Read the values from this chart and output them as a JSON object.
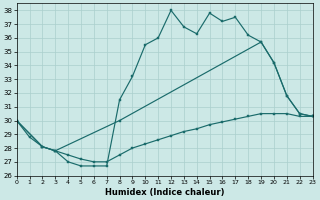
{
  "xlabel": "Humidex (Indice chaleur)",
  "bg_color": "#cce8e6",
  "grid_color": "#aacfcd",
  "line_color": "#1a6b6b",
  "xlim": [
    0,
    23
  ],
  "ylim": [
    26,
    38.5
  ],
  "xticks": [
    0,
    1,
    2,
    3,
    4,
    5,
    6,
    7,
    8,
    9,
    10,
    11,
    12,
    13,
    14,
    15,
    16,
    17,
    18,
    19,
    20,
    21,
    22,
    23
  ],
  "yticks": [
    26,
    27,
    28,
    29,
    30,
    31,
    32,
    33,
    34,
    35,
    36,
    37,
    38
  ],
  "line_jagged_x": [
    0,
    1,
    2,
    3,
    4,
    5,
    6,
    7,
    8,
    9,
    10,
    11,
    12,
    13,
    14,
    15,
    16,
    17,
    18,
    19,
    20,
    21,
    22,
    23
  ],
  "line_jagged_y": [
    30.0,
    28.8,
    28.1,
    27.8,
    27.0,
    26.7,
    26.7,
    26.7,
    31.5,
    33.2,
    35.5,
    36.0,
    38.0,
    36.8,
    36.3,
    37.8,
    37.2,
    37.5,
    36.2,
    35.7,
    34.2,
    31.8,
    30.5,
    30.3
  ],
  "line_diag_x": [
    0,
    2,
    3,
    8,
    19,
    20,
    21,
    22,
    23
  ],
  "line_diag_y": [
    30.0,
    28.1,
    27.8,
    30.0,
    35.7,
    34.2,
    31.8,
    30.5,
    30.3
  ],
  "line_lower_x": [
    0,
    2,
    3,
    4,
    5,
    6,
    7,
    8,
    9,
    10,
    11,
    12,
    13,
    14,
    15,
    16,
    17,
    18,
    19,
    20,
    21,
    22,
    23
  ],
  "line_lower_y": [
    30.0,
    28.1,
    27.8,
    27.5,
    27.2,
    27.0,
    27.0,
    27.5,
    28.0,
    28.3,
    28.6,
    28.9,
    29.2,
    29.4,
    29.7,
    29.9,
    30.1,
    30.3,
    30.5,
    30.5,
    30.5,
    30.3,
    30.3
  ]
}
